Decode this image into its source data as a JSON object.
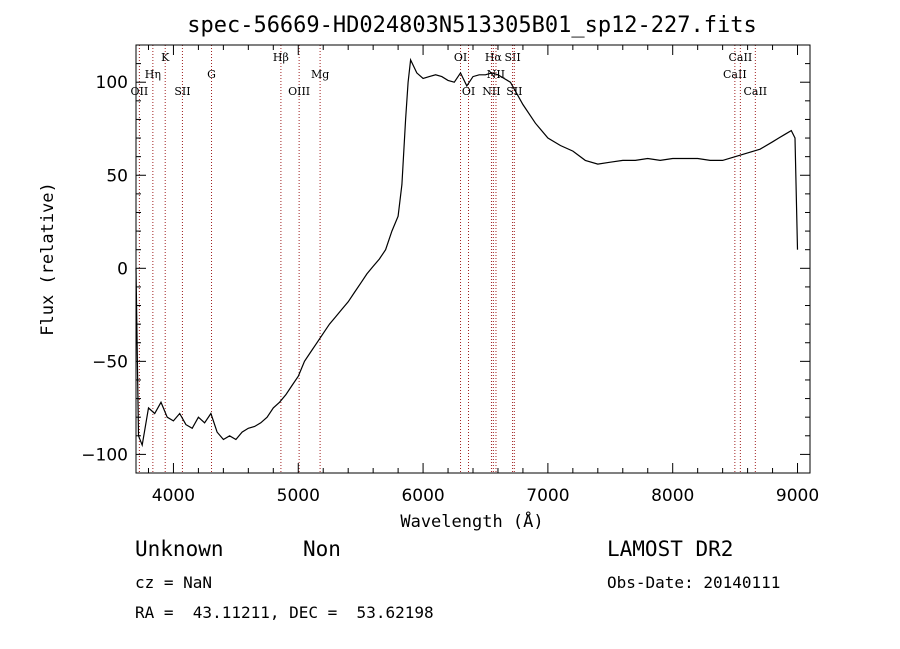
{
  "chart_data": {
    "type": "line",
    "title": "spec-56669-HD024803N513305B01_sp12-227.fits",
    "xlabel": "Wavelength (Å)",
    "ylabel": "Flux (relative)",
    "xlim": [
      3700,
      9100
    ],
    "ylim": [
      -110,
      120
    ],
    "xticks": [
      4000,
      5000,
      6000,
      7000,
      8000,
      9000
    ],
    "yticks": [
      -100,
      -50,
      0,
      50,
      100
    ],
    "grid": false,
    "series": [
      {
        "x": [
          3700,
          3720,
          3750,
          3800,
          3850,
          3900,
          3950,
          4000,
          4050,
          4100,
          4150,
          4200,
          4250,
          4300,
          4350,
          4400,
          4450,
          4500,
          4550,
          4600,
          4650,
          4700,
          4750,
          4800,
          4850,
          4900,
          4950,
          5000,
          5050,
          5100,
          5150,
          5200,
          5250,
          5300,
          5350,
          5400,
          5450,
          5500,
          5550,
          5600,
          5650,
          5700,
          5750,
          5800,
          5830,
          5860,
          5880,
          5900,
          5950,
          6000,
          6050,
          6100,
          6150,
          6200,
          6250,
          6300,
          6350,
          6400,
          6450,
          6500,
          6550,
          6600,
          6650,
          6700,
          6750,
          6800,
          6900,
          7000,
          7100,
          7200,
          7300,
          7400,
          7500,
          7600,
          7700,
          7800,
          7900,
          8000,
          8100,
          8200,
          8300,
          8400,
          8500,
          8600,
          8700,
          8800,
          8850,
          8900,
          8950,
          8980,
          9000
        ],
        "y": [
          0,
          -90,
          -95,
          -75,
          -78,
          -72,
          -80,
          -82,
          -78,
          -84,
          -86,
          -80,
          -83,
          -78,
          -88,
          -92,
          -90,
          -92,
          -88,
          -86,
          -85,
          -83,
          -80,
          -75,
          -72,
          -68,
          -63,
          -58,
          -50,
          -45,
          -40,
          -35,
          -30,
          -26,
          -22,
          -18,
          -13,
          -8,
          -3,
          1,
          5,
          10,
          20,
          28,
          45,
          80,
          100,
          112,
          105,
          102,
          103,
          104,
          103,
          101,
          100,
          105,
          98,
          103,
          104,
          104,
          105,
          104,
          102,
          100,
          94,
          88,
          78,
          70,
          66,
          63,
          58,
          56,
          57,
          58,
          58,
          59,
          58,
          59,
          59,
          59,
          58,
          58,
          60,
          62,
          64,
          68,
          70,
          72,
          74,
          70,
          10
        ]
      }
    ],
    "spectral_lines": [
      {
        "label": "OII",
        "x": 3727,
        "row": 3
      },
      {
        "label": "Hη",
        "x": 3835,
        "row": 2
      },
      {
        "label": "K",
        "x": 3934,
        "row": 1
      },
      {
        "label": "SII",
        "x": 4072,
        "row": 3
      },
      {
        "label": "G",
        "x": 4305,
        "row": 2
      },
      {
        "label": "Hβ",
        "x": 4861,
        "row": 1
      },
      {
        "label": "OIII",
        "x": 5007,
        "row": 3
      },
      {
        "label": "Mg",
        "x": 5175,
        "row": 2
      },
      {
        "label": "OI",
        "x": 6300,
        "row": 1
      },
      {
        "label": "OI",
        "x": 6364,
        "row": 3
      },
      {
        "label": "Hα",
        "x": 6563,
        "row": 1
      },
      {
        "label": "NII",
        "x": 6548,
        "row": 3
      },
      {
        "label": "NII",
        "x": 6584,
        "row": 2
      },
      {
        "label": "SII",
        "x": 6717,
        "row": 1
      },
      {
        "label": "SII",
        "x": 6731,
        "row": 3
      },
      {
        "label": "CaII",
        "x": 8498,
        "row": 2
      },
      {
        "label": "CaII",
        "x": 8542,
        "row": 1
      },
      {
        "label": "CaII",
        "x": 8662,
        "row": 3
      }
    ]
  },
  "info": {
    "class_label": "Unknown",
    "subclass_label": "Non",
    "survey": "LAMOST DR2",
    "cz": "cz = NaN",
    "obs_date": "Obs-Date: 20140111",
    "coords": "RA =  43.11211, DEC =  53.62198"
  }
}
